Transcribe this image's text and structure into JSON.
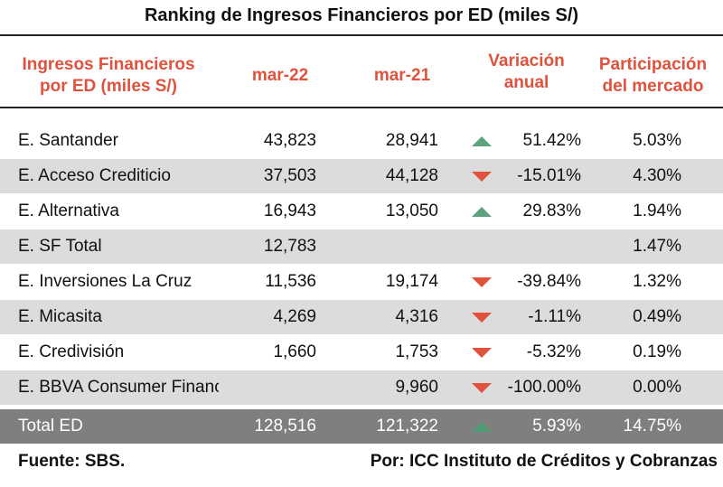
{
  "title": "Ranking de Ingresos Financieros por ED (miles S/)",
  "headers": {
    "name_line1": "Ingresos Financieros",
    "name_line2": "por ED (miles S/)",
    "mar22": "mar-22",
    "mar21": "mar-21",
    "var_line1": "Variación",
    "var_line2": "anual",
    "part_line1": "Participación",
    "part_line2": "del mercado"
  },
  "colors": {
    "header_text": "#e0523c",
    "up_arrow": "#5aa37e",
    "down_arrow": "#e0523c",
    "alt_row": "#dcdcdc",
    "total_row": "#7f7f7f"
  },
  "rows": [
    {
      "name": "E. Santander",
      "mar22": "43,823",
      "mar21": "28,941",
      "trend": "up",
      "variation": "51.42%",
      "share": "5.03%"
    },
    {
      "name": "E. Acceso Crediticio",
      "mar22": "37,503",
      "mar21": "44,128",
      "trend": "down",
      "variation": "-15.01%",
      "share": "4.30%"
    },
    {
      "name": "E. Alternativa",
      "mar22": "16,943",
      "mar21": "13,050",
      "trend": "up",
      "variation": "29.83%",
      "share": "1.94%"
    },
    {
      "name": "E. SF Total",
      "mar22": "12,783",
      "mar21": "",
      "trend": "none",
      "variation": "",
      "share": "1.47%"
    },
    {
      "name": "E. Inversiones La Cruz",
      "mar22": "11,536",
      "mar21": "19,174",
      "trend": "down",
      "variation": "-39.84%",
      "share": "1.32%"
    },
    {
      "name": "E. Micasita",
      "mar22": "4,269",
      "mar21": "4,316",
      "trend": "down",
      "variation": "-1.11%",
      "share": "0.49%"
    },
    {
      "name": "E. Credivisión",
      "mar22": "1,660",
      "mar21": "1,753",
      "trend": "down",
      "variation": "-5.32%",
      "share": "0.19%"
    },
    {
      "name": "E. BBVA Consumer Finance",
      "mar22": "",
      "mar21": "9,960",
      "trend": "down",
      "variation": "-100.00%",
      "share": "0.00%"
    }
  ],
  "total": {
    "name": "Total ED",
    "mar22": "128,516",
    "mar21": "121,322",
    "trend": "up",
    "variation": "5.93%",
    "share": "14.75%"
  },
  "footer": {
    "source": "Fuente: SBS.",
    "credit": "Por: ICC Instituto de Créditos y Cobranzas"
  }
}
